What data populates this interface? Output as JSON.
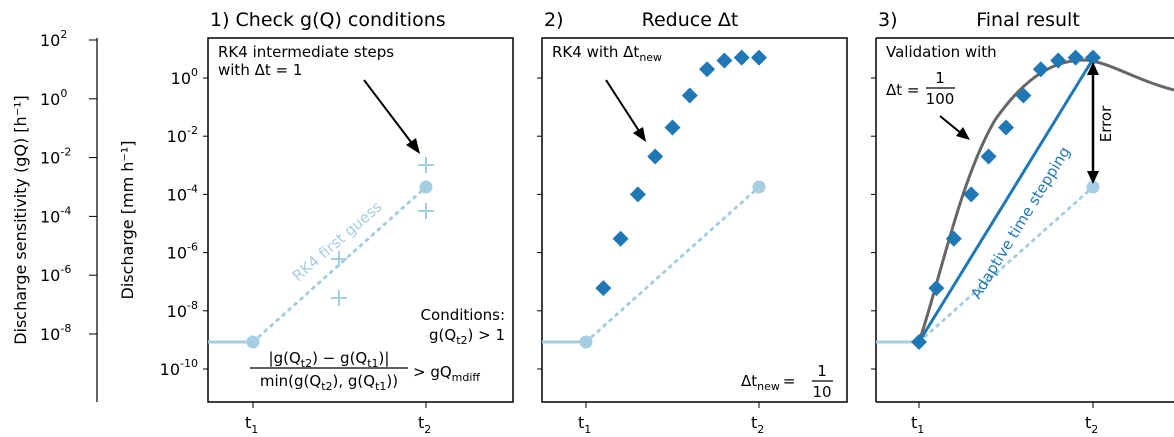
{
  "colors": {
    "light": "#a6cee3",
    "dark": "#1f78b4",
    "gray": "#666666"
  },
  "chart_data": [
    {
      "type": "axis",
      "ylabel": "Discharge sensitivity (gQ) [h⁻¹]",
      "yscale": "log",
      "ylim": [
        1e-10,
        100.0
      ],
      "yticks": [
        {
          "base": "10",
          "exp": "2"
        },
        {
          "base": "10",
          "exp": "0"
        },
        {
          "base": "10",
          "exp": "-2"
        },
        {
          "base": "10",
          "exp": "-4"
        },
        {
          "base": "10",
          "exp": "-6"
        },
        {
          "base": "10",
          "exp": "-8"
        }
      ]
    },
    {
      "type": "scatter",
      "title": "1)  Check g(Q) conditions",
      "ylabel": "Discharge [mm h⁻¹]",
      "yscale": "log",
      "ylim": [
        1e-11,
        100.0
      ],
      "x_ticklabels": [
        {
          "base": "t",
          "sub": "1"
        },
        {
          "base": "t",
          "sub": "2"
        }
      ],
      "yticks": [
        {
          "base": "10",
          "exp": "0"
        },
        {
          "base": "10",
          "exp": "-2"
        },
        {
          "base": "10",
          "exp": "-4"
        },
        {
          "base": "10",
          "exp": "-6"
        },
        {
          "base": "10",
          "exp": "-8"
        },
        {
          "base": "10",
          "exp": "-10"
        }
      ],
      "series": [
        {
          "name": "RK4 first guess",
          "x": [
            1,
            2
          ],
          "y": [
            6e-10,
            0.00013
          ]
        },
        {
          "x": [
            1.5,
            1.5,
            2,
            2
          ],
          "y": [
            2e-08,
            5e-07,
            0.0008,
            2e-05
          ]
        }
      ],
      "annotations": {
        "arrow_text": [
          "RK4 intermediate steps",
          "with Δt = 1"
        ],
        "conditions_title": "Conditions:",
        "cond1": "g(Q",
        "cond1_sub": "t2",
        "cond1_tail": ") > 1",
        "frac_num": "|g(Q",
        "frac_num_sub1": "t2",
        "frac_num_mid": ") − g(Q",
        "frac_num_sub2": "t1",
        "frac_num_tail": ")|",
        "frac_den": "min(g(Q",
        "frac_den_sub1": "t2",
        "frac_den_mid": "), g(Q",
        "frac_den_sub2": "t1",
        "frac_den_tail": "))",
        "rhs": "> gQ",
        "rhs_sub": "mdiff"
      }
    },
    {
      "type": "scatter",
      "title": "2)",
      "title2": "Reduce Δt",
      "x_ticklabels": [
        {
          "base": "t",
          "sub": "1"
        },
        {
          "base": "t",
          "sub": "2"
        }
      ],
      "series": [
        {
          "x": [
            1,
            2
          ],
          "y": [
            6e-10,
            0.00013
          ]
        },
        {
          "name": "RK4 with Δt_new",
          "x": [
            1.1,
            1.2,
            1.3,
            1.4,
            1.5,
            1.6,
            1.7,
            1.8,
            1.9,
            2.0
          ],
          "y": [
            6e-08,
            3e-06,
            0.0001,
            0.002,
            0.02,
            0.25,
            2,
            4,
            5,
            5
          ]
        }
      ],
      "annotations": {
        "arrow_text": "RK4 with Δt",
        "arrow_text_sub": "new",
        "dt_lhs": "Δt",
        "dt_sub": "new",
        "dt_eq": "=",
        "dt_num": "1",
        "dt_den": "10"
      }
    },
    {
      "type": "line",
      "title": "3)",
      "title2": "Final result",
      "x_ticklabels": [
        {
          "base": "t",
          "sub": "1"
        },
        {
          "base": "t",
          "sub": "2"
        }
      ],
      "series": [
        {
          "x": [
            1,
            2
          ],
          "y": [
            6e-10,
            0.00013
          ]
        },
        {
          "name": "Adaptive time stepping",
          "x": [
            1.1,
            1.2,
            1.3,
            1.4,
            1.5,
            1.6,
            1.7,
            1.8,
            1.9,
            2.0
          ],
          "y": [
            6e-08,
            3e-06,
            0.0001,
            0.002,
            0.02,
            0.25,
            2,
            4,
            5,
            5
          ]
        },
        {
          "name": "Validation",
          "x": [
            1.0,
            1.1,
            1.2,
            1.3,
            1.4,
            1.5,
            1.6,
            1.7,
            1.8,
            1.9,
            2.0,
            2.1,
            2.2,
            2.3
          ],
          "y": [
            6e-10,
            1e-07,
            8e-06,
            0.0002,
            0.003,
            0.03,
            0.3,
            2,
            5,
            6.5,
            5,
            2.5,
            1.5,
            1.2
          ]
        }
      ],
      "annotations": {
        "valid_line1": "Validation with",
        "valid_lhs": "Δt =",
        "valid_num": "1",
        "valid_den": "100",
        "adaptive": "Adaptive time stepping",
        "error": "Error"
      }
    }
  ]
}
